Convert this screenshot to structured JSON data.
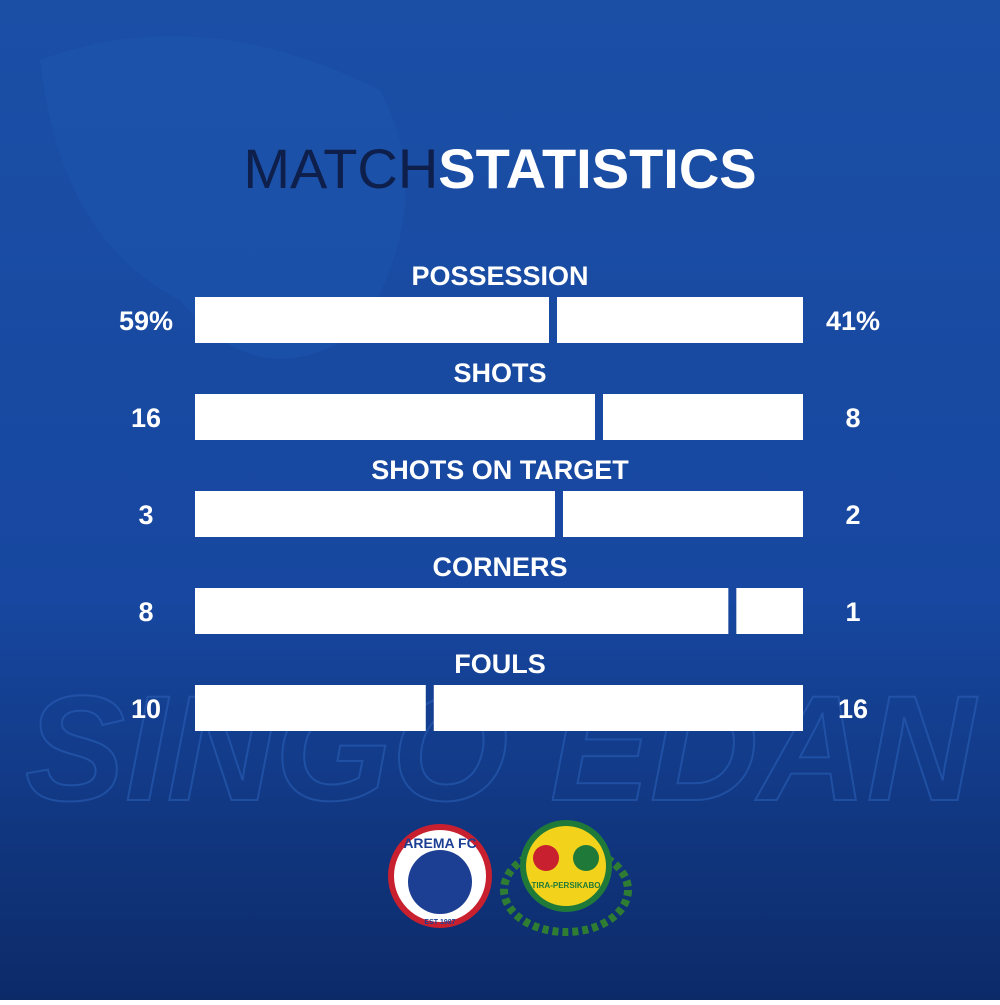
{
  "title_light": "MATCH",
  "title_bold": "STATISTICS",
  "watermark": "SINGO EDAN",
  "stats": [
    {
      "label": "POSSESSION",
      "values": [
        59,
        41
      ],
      "value_labels": [
        "59%",
        "41%"
      ]
    },
    {
      "label": "SHOTS",
      "values": [
        16,
        8
      ]
    },
    {
      "label": "SHOTS ON TARGET",
      "values": [
        3,
        2
      ]
    },
    {
      "label": "CORNERS",
      "values": [
        8,
        1
      ]
    },
    {
      "label": "FOULS",
      "values": [
        10,
        16
      ]
    }
  ],
  "home_logo": {
    "name": "AREMA FC",
    "est": "EST 1987"
  },
  "away_logo": {
    "name": "TIRA-PERSIKABO"
  }
}
